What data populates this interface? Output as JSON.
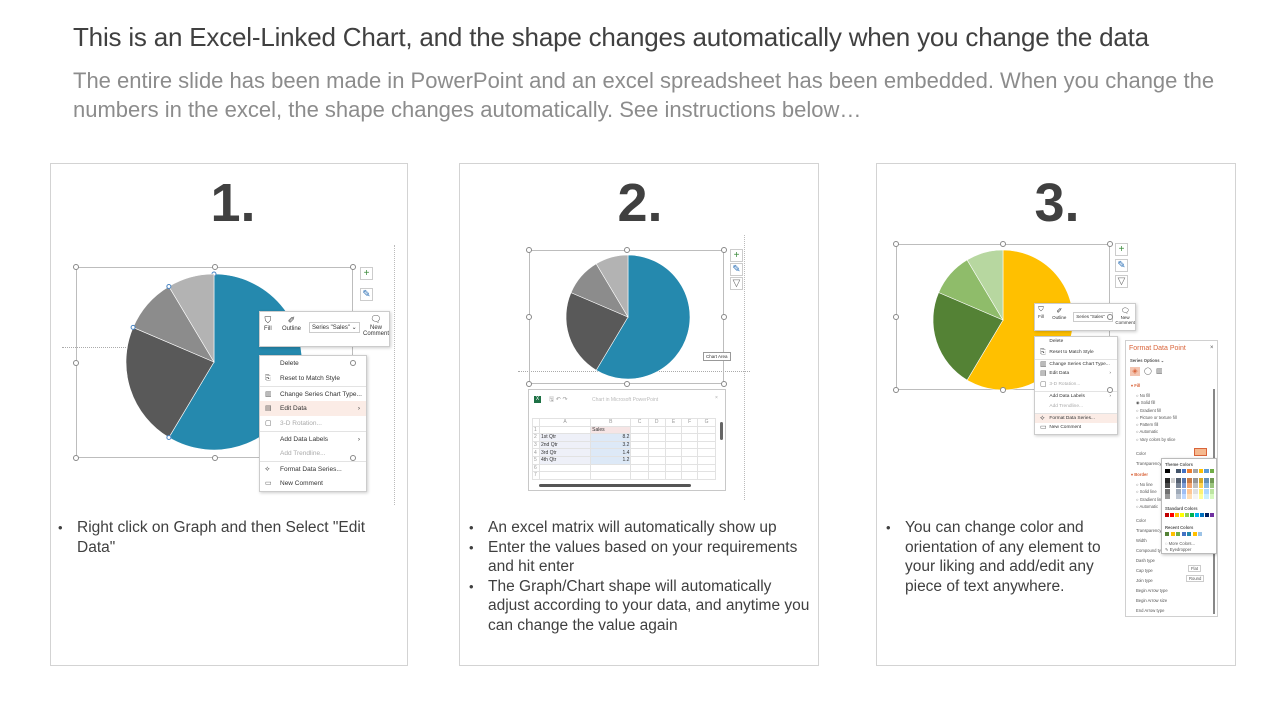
{
  "header": {
    "title": "This is an Excel-Linked Chart, and the shape changes automatically when you change the data",
    "subtitle": "The entire slide has been made in PowerPoint and an excel spreadsheet has been embedded. When you change the numbers in the excel, the shape changes automatically. See instructions below…"
  },
  "panels": [
    {
      "number": "1.",
      "bullets": [
        "Right click on Graph and then Select \"Edit Data\""
      ]
    },
    {
      "number": "2.",
      "bullets": [
        "An excel matrix will automatically show up",
        "Enter the values based on your requirements and hit enter",
        "The Graph/Chart shape will automatically adjust according to your data, and anytime you can change the value again"
      ]
    },
    {
      "number": "3.",
      "bullets": [
        "You can change color and orientation of any element to your liking and add/edit any piece of text anywhere."
      ]
    }
  ],
  "colors": {
    "pie1": [
      "#2589ae",
      "#595959",
      "#8c8c8c",
      "#b3b3b3"
    ],
    "pie3": [
      "#ffc000",
      "#548235",
      "#8fbc6a",
      "#b7d7a0"
    ],
    "accent": "#d9643a"
  },
  "mini_toolbar": {
    "fill": "Fill",
    "outline": "Outline",
    "series": "Series \"Sales\"",
    "new_comment_1": "New",
    "new_comment_2": "Comment"
  },
  "context_menu": [
    {
      "label": "Delete",
      "icon": ""
    },
    {
      "label": "Reset to Match Style",
      "icon": "reset-icon"
    },
    {
      "label": "Change Series Chart Type...",
      "icon": "chart-type-icon"
    },
    {
      "label": "Edit Data",
      "icon": "edit-data-icon",
      "submenu": true
    },
    {
      "label": "3-D Rotation...",
      "icon": "rotation-icon",
      "disabled": true
    },
    {
      "label": "Add Data Labels",
      "icon": "",
      "submenu": true
    },
    {
      "label": "Add Trendline...",
      "icon": "",
      "disabled": true
    },
    {
      "label": "Format Data Series...",
      "icon": "format-icon"
    },
    {
      "label": "New Comment",
      "icon": "comment-icon"
    }
  ],
  "menu_highlight": {
    "panel1": "Edit Data",
    "panel3": "Format Data Series..."
  },
  "chart_area_tooltip": "Chart Area",
  "excel": {
    "title": "Chart in Microsoft PowerPoint",
    "columns": [
      "A",
      "B",
      "C",
      "D",
      "E",
      "F",
      "G"
    ],
    "rows": [
      [
        "",
        "Sales"
      ],
      [
        "1st Qtr",
        "8.2"
      ],
      [
        "2nd Qtr",
        "3.2"
      ],
      [
        "3rd Qtr",
        "1.4"
      ],
      [
        "4th Qtr",
        "1.2"
      ],
      [
        "",
        ""
      ],
      [
        "",
        ""
      ]
    ]
  },
  "chart_data": {
    "type": "pie",
    "categories": [
      "1st Qtr",
      "2nd Qtr",
      "3rd Qtr",
      "4th Qtr"
    ],
    "series": [
      {
        "name": "Sales",
        "values": [
          8.2,
          3.2,
          1.4,
          1.2
        ]
      }
    ]
  },
  "format_pane": {
    "title": "Format Data Point",
    "series_options": "Series Options ⌄",
    "fill_header": "Fill",
    "fill_options": [
      "No fill",
      "Solid fill",
      "Gradient fill",
      "Picture or texture fill",
      "Pattern fill",
      "Automatic",
      "Vary colors by slice"
    ],
    "color": "Color",
    "transparency": "Transparency",
    "border_header": "Border",
    "border_options": [
      "No line",
      "Solid line",
      "Gradient line",
      "Automatic"
    ],
    "border_props": [
      "Color",
      "Transparency",
      "Width",
      "Compound type",
      "Dash type",
      "Cap type",
      "Join type",
      "Begin Arrow type",
      "Begin Arrow size",
      "End Arrow type"
    ],
    "cap_value": "Flat",
    "join_value": "Round",
    "theme_colors": "Theme Colors",
    "standard_colors": "Standard Colors",
    "recent_colors": "Recent Colors",
    "more_colors": "More Colors...",
    "eyedropper": "Eyedropper"
  }
}
